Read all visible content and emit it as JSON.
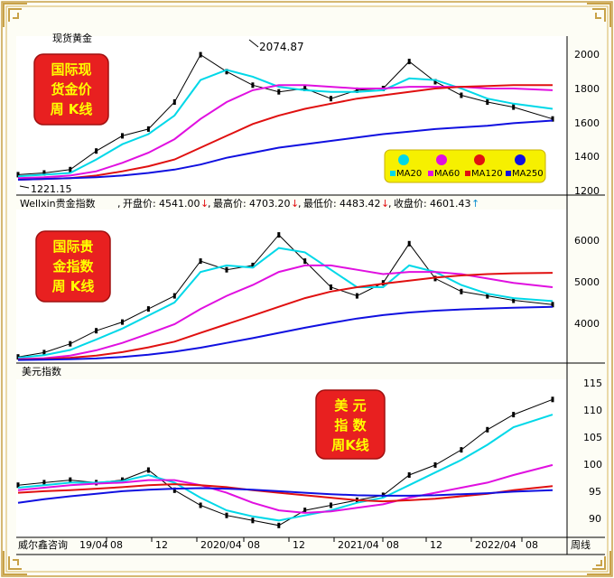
{
  "title_spot": "现货黄金",
  "colors": {
    "ma20": "#00d8e8",
    "ma60": "#e010e0",
    "ma120": "#e01010",
    "ma250": "#1010e0",
    "candle": "#000000",
    "badge_red": "#e82020",
    "badge_text": "#ffff00",
    "box_yellow": "#f6f000",
    "frame": "#c8a248"
  },
  "panel1": {
    "badge": [
      "国际现",
      "货金价",
      "周  K线"
    ],
    "high_label": "2074.87",
    "low_label": "1221.15",
    "yticks": [
      "2000",
      "1800",
      "1600",
      "1400",
      "1200"
    ],
    "legend": [
      {
        "swatch": "ma20",
        "text": "MA20"
      },
      {
        "swatch": "ma60",
        "text": "MA60"
      },
      {
        "swatch": "ma120",
        "text": "MA120"
      },
      {
        "swatch": "ma250",
        "text": "MA250"
      }
    ]
  },
  "panel2": {
    "info_name": "Wellxin贵金指数",
    "info": [
      {
        "label": "开盘价:",
        "value": "4541.00",
        "arrow": "↓",
        "arrow_color": "#e01010"
      },
      {
        "label": "最高价:",
        "value": "4703.20",
        "arrow": "↓",
        "arrow_color": "#e01010"
      },
      {
        "label": "最低价:",
        "value": "4483.42",
        "arrow": "↓",
        "arrow_color": "#e01010"
      },
      {
        "label": "收盘价:",
        "value": "4601.43",
        "arrow": "↑",
        "arrow_color": "#1090d0"
      }
    ],
    "badge": [
      "国际贵",
      "金指数",
      "周  K线"
    ],
    "yticks": [
      "6000",
      "5000",
      "4000"
    ]
  },
  "panel3": {
    "title": "美元指数",
    "badge": [
      "美  元",
      "指  数",
      "周K线"
    ],
    "yticks": [
      "115",
      "110",
      "105",
      "100",
      "95",
      "90"
    ]
  },
  "xaxis": {
    "labels": [
      "威尔鑫咨询",
      "19/04",
      "08",
      "12",
      "2020/04",
      "08",
      "12",
      "2021/04",
      "08",
      "12",
      "2022/04",
      "08"
    ],
    "period": "周线"
  },
  "chart_data": [
    {
      "type": "line",
      "title": "现货黄金",
      "ylim": [
        1180,
        2110
      ],
      "x": [
        0,
        8,
        16,
        24,
        32,
        40,
        48,
        56,
        64,
        72,
        80,
        88,
        96,
        104,
        112,
        120,
        128,
        136,
        144,
        152,
        164
      ],
      "series": [
        {
          "name": "",
          "values": [
            1290,
            1300,
            1320,
            1430,
            1520,
            1560,
            1720,
            2000,
            1900,
            1820,
            1780,
            1800,
            1740,
            1790,
            1800,
            1960,
            1840,
            1760,
            1720,
            1690,
            1620
          ]
        },
        {
          "name": "MA20",
          "values": [
            1280,
            1290,
            1300,
            1380,
            1470,
            1530,
            1640,
            1850,
            1910,
            1870,
            1810,
            1790,
            1780,
            1780,
            1790,
            1860,
            1850,
            1800,
            1740,
            1710,
            1680
          ]
        },
        {
          "name": "MA60",
          "values": [
            1270,
            1275,
            1285,
            1310,
            1360,
            1420,
            1500,
            1620,
            1720,
            1790,
            1820,
            1820,
            1810,
            1800,
            1800,
            1810,
            1810,
            1810,
            1800,
            1800,
            1790
          ]
        },
        {
          "name": "MA120",
          "values": [
            1260,
            1265,
            1270,
            1285,
            1310,
            1340,
            1380,
            1450,
            1520,
            1590,
            1640,
            1680,
            1710,
            1740,
            1760,
            1780,
            1800,
            1810,
            1815,
            1820,
            1820
          ]
        },
        {
          "name": "MA250",
          "values": [
            1260,
            1265,
            1270,
            1275,
            1285,
            1300,
            1320,
            1350,
            1390,
            1420,
            1450,
            1470,
            1490,
            1510,
            1530,
            1545,
            1560,
            1570,
            1580,
            1595,
            1610
          ]
        }
      ]
    },
    {
      "type": "line",
      "title": "Wellxin贵金指数",
      "ylim": [
        3300,
        6700
      ],
      "x": [
        0,
        8,
        16,
        24,
        32,
        40,
        48,
        56,
        64,
        72,
        80,
        88,
        96,
        104,
        112,
        120,
        128,
        136,
        144,
        152,
        164
      ],
      "series": [
        {
          "name": "",
          "values": [
            3400,
            3500,
            3700,
            4000,
            4200,
            4500,
            4800,
            5600,
            5400,
            5500,
            6200,
            5600,
            5000,
            4800,
            5100,
            6000,
            5200,
            4900,
            4800,
            4700,
            4600
          ]
        },
        {
          "name": "MA20",
          "values": [
            3380,
            3440,
            3560,
            3800,
            4050,
            4350,
            4650,
            5350,
            5500,
            5450,
            5900,
            5800,
            5400,
            5000,
            5000,
            5500,
            5350,
            5050,
            4850,
            4750,
            4680
          ]
        },
        {
          "name": "MA60",
          "values": [
            3350,
            3370,
            3430,
            3550,
            3720,
            3930,
            4150,
            4500,
            4800,
            5050,
            5350,
            5500,
            5500,
            5400,
            5300,
            5350,
            5350,
            5300,
            5200,
            5100,
            5000
          ]
        },
        {
          "name": "MA120",
          "values": [
            3340,
            3350,
            3380,
            3430,
            3510,
            3620,
            3750,
            3950,
            4150,
            4350,
            4550,
            4750,
            4900,
            5000,
            5080,
            5150,
            5220,
            5270,
            5300,
            5320,
            5330
          ]
        },
        {
          "name": "MA250",
          "values": [
            3330,
            3335,
            3345,
            3365,
            3400,
            3450,
            3520,
            3610,
            3720,
            3830,
            3950,
            4070,
            4180,
            4280,
            4360,
            4420,
            4460,
            4490,
            4510,
            4530,
            4550
          ]
        }
      ]
    },
    {
      "type": "line",
      "title": "美元指数",
      "ylim": [
        87,
        118
      ],
      "x": [
        0,
        8,
        16,
        24,
        32,
        40,
        48,
        56,
        64,
        72,
        80,
        88,
        96,
        104,
        112,
        120,
        128,
        136,
        144,
        152,
        164
      ],
      "series": [
        {
          "name": "",
          "values": [
            97,
            97.5,
            98,
            97.5,
            98,
            100,
            96,
            93,
            91,
            90,
            89,
            92,
            93,
            94,
            95,
            99,
            101,
            104,
            108,
            111,
            114
          ]
        },
        {
          "name": "MA20",
          "values": [
            96.5,
            97,
            97.5,
            97.5,
            97.8,
            99,
            97.5,
            94.5,
            92,
            90.8,
            90,
            91,
            92,
            93.5,
            94.5,
            97,
            99.5,
            102,
            105,
            108.5,
            111
          ]
        },
        {
          "name": "MA60",
          "values": [
            96,
            96.5,
            97,
            97.3,
            97.5,
            98,
            98,
            97,
            95.5,
            93.5,
            92,
            91.5,
            91.8,
            92.5,
            93.2,
            94.5,
            95.5,
            96.5,
            97.5,
            99,
            101
          ]
        },
        {
          "name": "MA120",
          "values": [
            95.5,
            95.8,
            96,
            96.3,
            96.6,
            97,
            97.2,
            97,
            96.6,
            96,
            95.5,
            95,
            94.5,
            94,
            93.8,
            94,
            94.3,
            94.8,
            95.3,
            96,
            96.8
          ]
        },
        {
          "name": "MA250",
          "values": [
            93.5,
            94.2,
            94.8,
            95.3,
            95.8,
            96.1,
            96.3,
            96.4,
            96.3,
            96.1,
            95.8,
            95.5,
            95.2,
            95,
            94.9,
            94.9,
            95,
            95.2,
            95.4,
            95.7,
            96
          ]
        }
      ]
    }
  ]
}
